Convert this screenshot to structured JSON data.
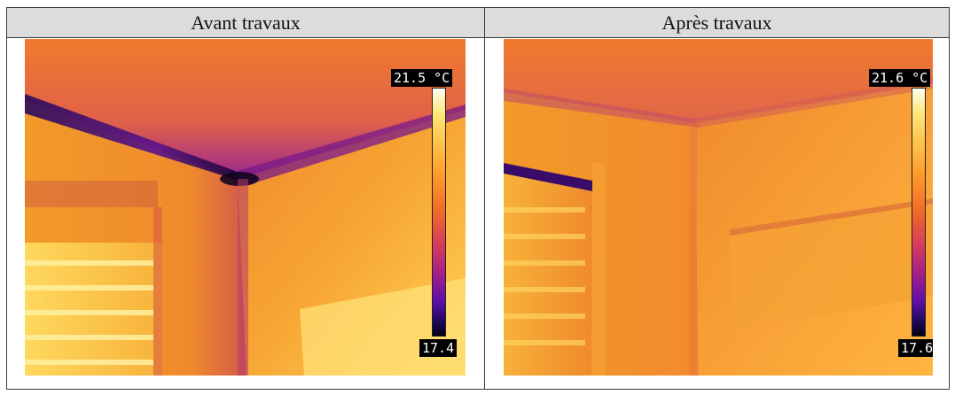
{
  "table": {
    "columns": [
      {
        "title": "Avant travaux",
        "scale_max": "21.5 °C",
        "scale_min": "17.4"
      },
      {
        "title": "Après travaux",
        "scale_max": "21.6 °C",
        "scale_min": "17.6"
      }
    ]
  },
  "colors": {
    "header_bg": "#dcdcdc",
    "border": "#3a3a3a",
    "palette_hot": "#fffef0",
    "palette_mid": "#f06a2a",
    "palette_cold": "#050010"
  }
}
